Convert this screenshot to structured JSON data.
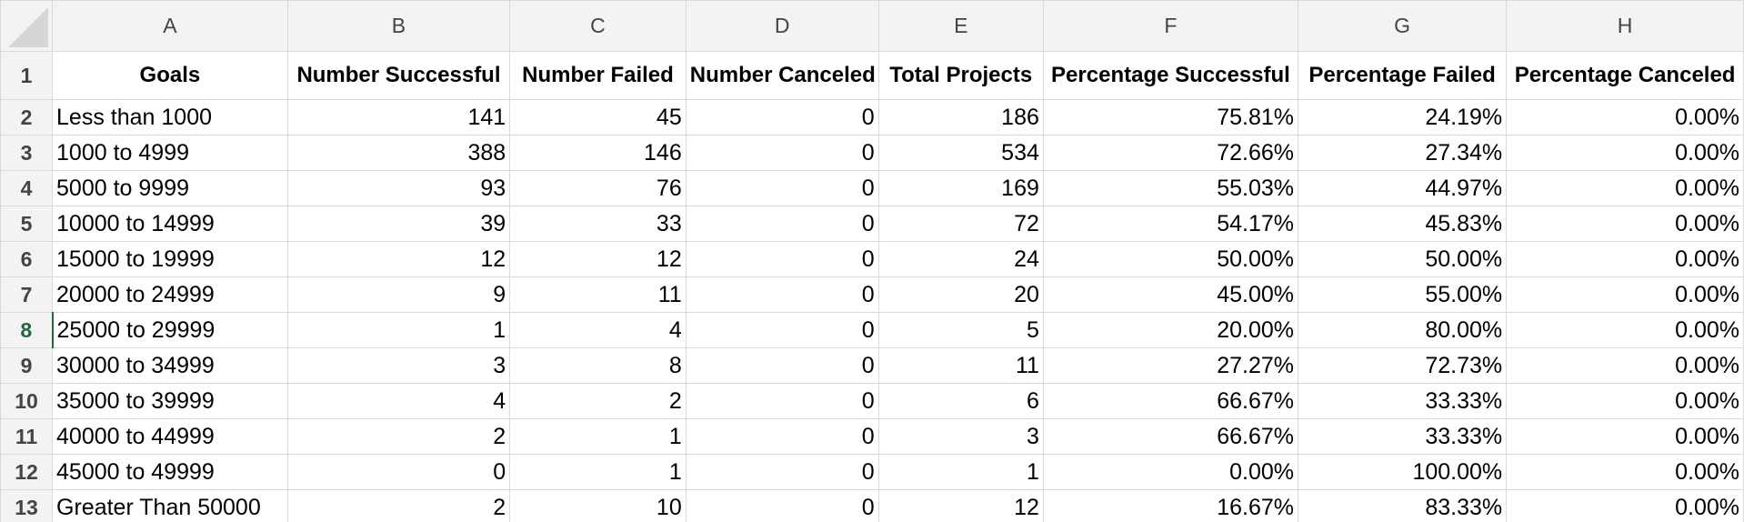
{
  "columns": [
    "A",
    "B",
    "C",
    "D",
    "E",
    "F",
    "G",
    "H"
  ],
  "headers": [
    "Goals",
    "Number Successful",
    "Number Failed",
    "Number Canceled",
    "Total Projects",
    "Percentage Successful",
    "Percentage Failed",
    "Percentage Canceled"
  ],
  "active_row": "8",
  "rows": [
    {
      "num": "2",
      "cells": [
        "Less than 1000",
        "141",
        "45",
        "0",
        "186",
        "75.81%",
        "24.19%",
        "0.00%"
      ]
    },
    {
      "num": "3",
      "cells": [
        "1000 to 4999",
        "388",
        "146",
        "0",
        "534",
        "72.66%",
        "27.34%",
        "0.00%"
      ]
    },
    {
      "num": "4",
      "cells": [
        "5000 to 9999",
        "93",
        "76",
        "0",
        "169",
        "55.03%",
        "44.97%",
        "0.00%"
      ]
    },
    {
      "num": "5",
      "cells": [
        "10000 to 14999",
        "39",
        "33",
        "0",
        "72",
        "54.17%",
        "45.83%",
        "0.00%"
      ]
    },
    {
      "num": "6",
      "cells": [
        "15000 to 19999",
        "12",
        "12",
        "0",
        "24",
        "50.00%",
        "50.00%",
        "0.00%"
      ]
    },
    {
      "num": "7",
      "cells": [
        "20000 to 24999",
        "9",
        "11",
        "0",
        "20",
        "45.00%",
        "55.00%",
        "0.00%"
      ]
    },
    {
      "num": "8",
      "cells": [
        "25000 to 29999",
        "1",
        "4",
        "0",
        "5",
        "20.00%",
        "80.00%",
        "0.00%"
      ]
    },
    {
      "num": "9",
      "cells": [
        "30000 to 34999",
        "3",
        "8",
        "0",
        "11",
        "27.27%",
        "72.73%",
        "0.00%"
      ]
    },
    {
      "num": "10",
      "cells": [
        "35000 to 39999",
        "4",
        "2",
        "0",
        "6",
        "66.67%",
        "33.33%",
        "0.00%"
      ]
    },
    {
      "num": "11",
      "cells": [
        "40000 to 44999",
        "2",
        "1",
        "0",
        "3",
        "66.67%",
        "33.33%",
        "0.00%"
      ]
    },
    {
      "num": "12",
      "cells": [
        "45000 to 49999",
        "0",
        "1",
        "0",
        "1",
        "0.00%",
        "100.00%",
        "0.00%"
      ]
    },
    {
      "num": "13",
      "cells": [
        "Greater Than 50000",
        "2",
        "10",
        "0",
        "12",
        "16.67%",
        "83.33%",
        "0.00%"
      ]
    }
  ]
}
